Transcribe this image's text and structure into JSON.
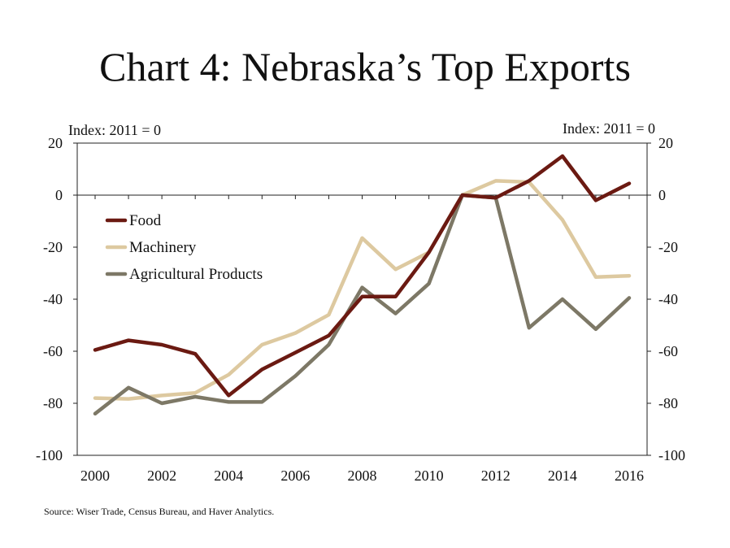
{
  "chart_title": "Chart 4: Nebraska’s Top Exports",
  "source": "Source: Wiser Trade, Census Bureau, and Haver Analytics.",
  "colors": {
    "food": "#6b1a12",
    "machinery": "#ddc9a0",
    "agricultural": "#7d7866"
  },
  "chart_data": {
    "type": "line",
    "title": "Chart 4: Nebraska’s Top Exports",
    "left_axis_label": "Index: 2011 = 0",
    "right_axis_label": "Index: 2011 = 0",
    "x": [
      2000,
      2001,
      2002,
      2003,
      2004,
      2005,
      2006,
      2007,
      2008,
      2009,
      2010,
      2011,
      2012,
      2013,
      2014,
      2015,
      2016
    ],
    "x_ticks": [
      "2000",
      "2002",
      "2004",
      "2006",
      "2008",
      "2010",
      "2012",
      "2014",
      "2016"
    ],
    "y_ticks": [
      "20",
      "0",
      "-20",
      "-40",
      "-60",
      "-80",
      "-100"
    ],
    "ylim": [
      -100,
      20
    ],
    "xlim": [
      2000,
      2016
    ],
    "grid": false,
    "legend_placement": "upper-left",
    "series": [
      {
        "name": "Food",
        "values": [
          -59.5,
          -55.8,
          -57.5,
          -61,
          -77,
          -67,
          -60.5,
          -54,
          -39,
          -39,
          -22,
          0,
          -1,
          5.5,
          15,
          -2,
          4.5
        ]
      },
      {
        "name": "Machinery",
        "values": [
          -78,
          -78.3,
          -77,
          -76,
          -69,
          -57.5,
          -53,
          -46,
          -16.5,
          -28.5,
          -22,
          0,
          5.5,
          5,
          -9.5,
          -31.5,
          -31
        ]
      },
      {
        "name": "Agricultural Products",
        "values": [
          -84,
          -74,
          -80,
          -77.5,
          -79.5,
          -79.5,
          -69.5,
          -57.5,
          -35.5,
          -45.5,
          -34,
          0,
          -1,
          -51,
          -40,
          -51.5,
          -39.5
        ]
      }
    ]
  }
}
